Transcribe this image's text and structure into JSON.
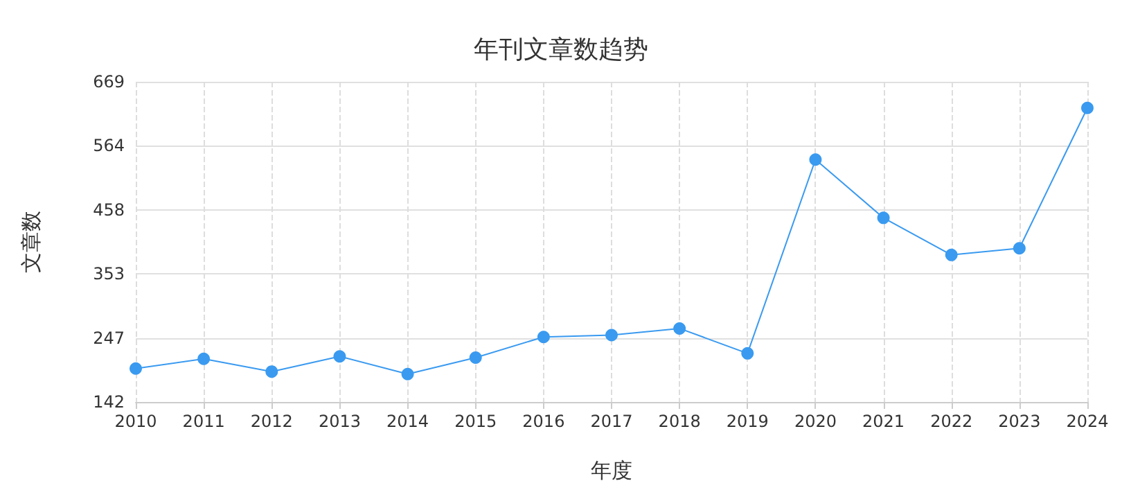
{
  "chart_data": {
    "type": "line",
    "title": "年刊文章数趋势",
    "xlabel": "年度",
    "ylabel": "文章数",
    "categories": [
      "2010",
      "2011",
      "2012",
      "2013",
      "2014",
      "2015",
      "2016",
      "2017",
      "2018",
      "2019",
      "2020",
      "2021",
      "2022",
      "2023",
      "2024"
    ],
    "series": [
      {
        "color": "#3a9af0",
        "values": [
          197,
          213,
          192,
          217,
          188,
          215,
          249,
          252,
          263,
          222,
          541,
          445,
          384,
          395,
          626
        ]
      }
    ],
    "ylim": [
      142,
      669
    ],
    "yticks": [
      142,
      247,
      353,
      458,
      564,
      669
    ],
    "grid": true,
    "marker": "circle",
    "line_style": "solid"
  }
}
